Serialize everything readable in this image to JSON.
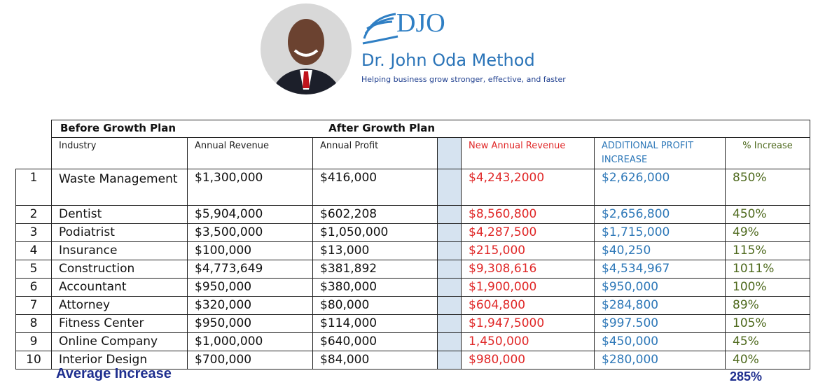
{
  "header": {
    "logo": "DJO",
    "title": "Dr. John Oda Method",
    "tagline": "Helping business grow stronger, effective, and faster"
  },
  "table": {
    "groups": [
      "Before Growth Plan",
      "After Growth Plan"
    ],
    "columns": [
      "Industry",
      "Annual Revenue",
      "Annual Profit",
      "New Annual Revenue",
      "ADDITIONAL PROFIT INCREASE",
      "% Increase"
    ],
    "rows": [
      [
        "1",
        "Waste Management",
        "$1,300,000",
        "$416,000",
        "$4,243,2000",
        "$2,626,000",
        "850%"
      ],
      [
        "2",
        "Dentist",
        "$5,904,000",
        "$602,208",
        "$8,560,800",
        "$2,656,800",
        "450%"
      ],
      [
        "3",
        "Podiatrist",
        "$3,500,000",
        "$1,050,000",
        "$4,287,500",
        "$1,715,000",
        "49%"
      ],
      [
        "4",
        "Insurance",
        "$100,000",
        "$13,000",
        "$215,000",
        "$40,250",
        "115%"
      ],
      [
        "5",
        "Construction",
        "$4,773,649",
        "$381,892",
        "$9,308,616",
        "$4,534,967",
        "1011%"
      ],
      [
        "6",
        "Accountant",
        "$950,000",
        "$380,000",
        "$1,900,000",
        "$950,000",
        "100%"
      ],
      [
        "7",
        "Attorney",
        "$320,000",
        "$80,000",
        "$604,800",
        "$284,800",
        "89%"
      ],
      [
        "8",
        "Fitness Center",
        "$950,000",
        "$114,000",
        "$1,947,5000",
        "$997.500",
        "105%"
      ],
      [
        "9",
        "Online Company",
        "$1,000,000",
        "$640,000",
        "1,450,000",
        "$450,000",
        "45%"
      ],
      [
        "10",
        "Interior Design",
        "$700,000",
        "$84,000",
        "$980,000",
        "$280,000",
        "40%"
      ]
    ]
  },
  "footer": {
    "label": "Average Increase",
    "value": "285%"
  }
}
